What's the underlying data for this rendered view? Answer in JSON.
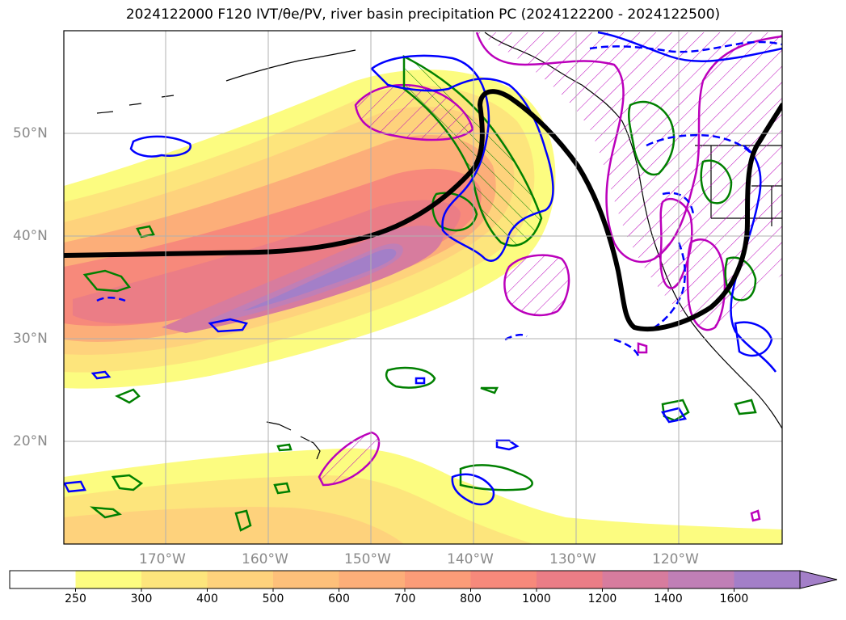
{
  "title": "2024122000 F120 IVT/θe/PV, river basin precipitation PC (2024122200 - 2024122500)",
  "lat_labels": [
    "50°N",
    "40°N",
    "30°N",
    "20°N"
  ],
  "lon_labels": [
    "170°W",
    "160°W",
    "150°W",
    "140°W",
    "130°W",
    "120°W"
  ],
  "colorbar": {
    "levels": [
      "250",
      "300",
      "400",
      "500",
      "600",
      "700",
      "800",
      "1000",
      "1200",
      "1400",
      "1600"
    ],
    "colors": [
      "#ffffff",
      "#fcfc80",
      "#fde57c",
      "#fed27c",
      "#fdc07a",
      "#fcae79",
      "#fb9c78",
      "#f7897b",
      "#eb7d86",
      "#d77c9e",
      "#c07fb6",
      "#a37fc8"
    ]
  },
  "map_colors": {
    "thetae_contour": "#000000",
    "pv_positive": "#0000ff",
    "precip_contour": "#008000",
    "basin_outline": "#bb00bb",
    "coastline": "#000000"
  }
}
